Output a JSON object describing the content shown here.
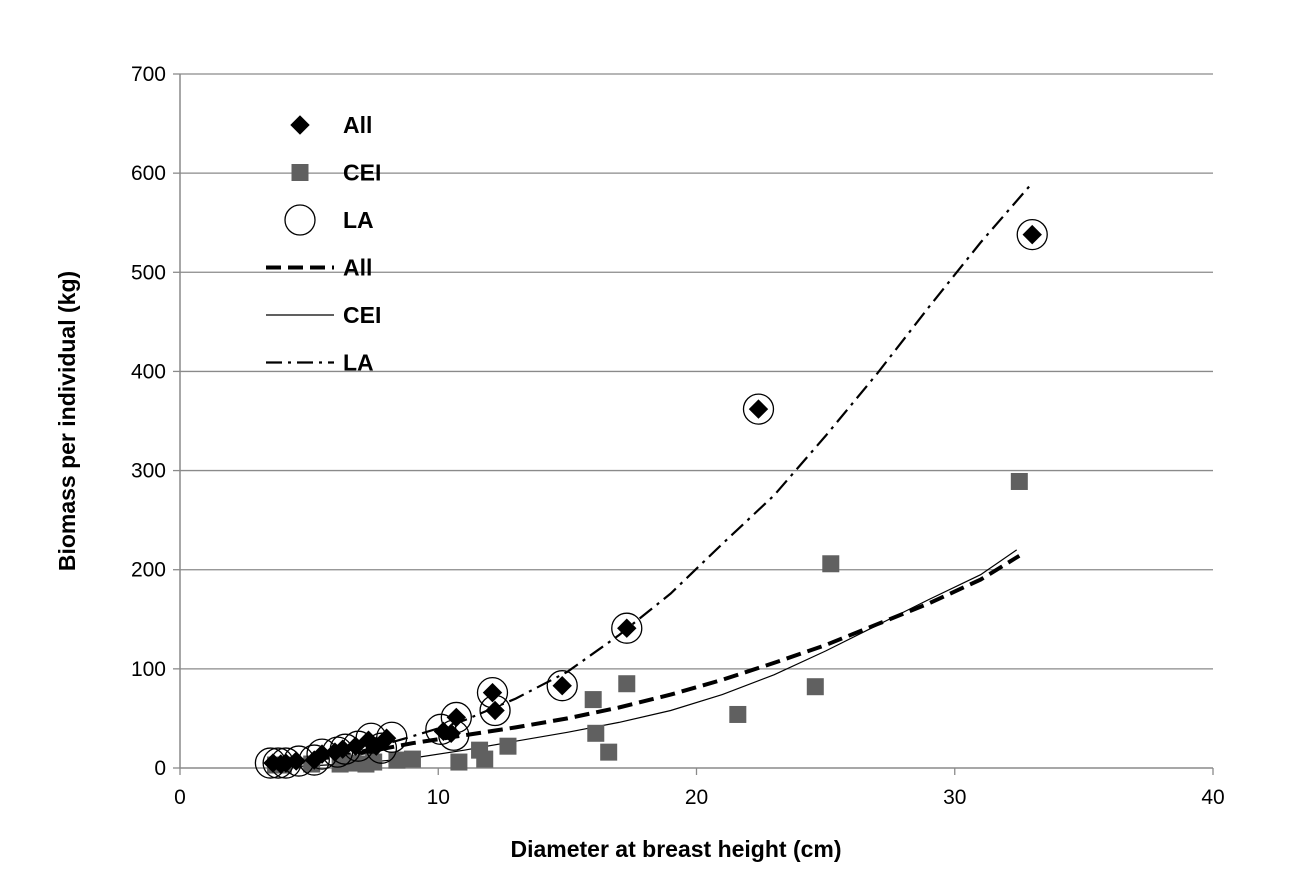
{
  "chart_data": {
    "type": "scatter",
    "title": "",
    "xlabel": "Diameter at breast height (cm)",
    "ylabel": "Biomass per individual (kg)",
    "xlim": [
      0,
      40
    ],
    "ylim": [
      0,
      700
    ],
    "xticks": [
      0,
      10,
      20,
      30,
      40
    ],
    "yticks": [
      0,
      100,
      200,
      300,
      400,
      500,
      600,
      700
    ],
    "grid": "horizontal",
    "legend_position": "top-left",
    "legend": [
      {
        "label": "All",
        "kind": "marker",
        "marker": "diamond"
      },
      {
        "label": "CEI",
        "kind": "marker",
        "marker": "square"
      },
      {
        "label": "LA",
        "kind": "marker",
        "marker": "circle"
      },
      {
        "label": "All",
        "kind": "line",
        "dash": "dashed"
      },
      {
        "label": "CEI",
        "kind": "line",
        "dash": "solid"
      },
      {
        "label": "LA",
        "kind": "line",
        "dash": "dashdot"
      }
    ],
    "series": [
      {
        "name": "All",
        "marker": "diamond",
        "color": "#000000",
        "points": [
          [
            3.6,
            5
          ],
          [
            3.9,
            4
          ],
          [
            4.1,
            5
          ],
          [
            4.5,
            7
          ],
          [
            5.2,
            8
          ],
          [
            5.5,
            14
          ],
          [
            6.0,
            16
          ],
          [
            6.3,
            19
          ],
          [
            6.8,
            22
          ],
          [
            7.3,
            28
          ],
          [
            7.6,
            22
          ],
          [
            8.0,
            30
          ],
          [
            10.2,
            37
          ],
          [
            10.5,
            35
          ],
          [
            10.7,
            51
          ],
          [
            12.1,
            76
          ],
          [
            12.2,
            58
          ],
          [
            14.8,
            83
          ],
          [
            17.3,
            141
          ],
          [
            22.4,
            362
          ],
          [
            33.0,
            538
          ]
        ]
      },
      {
        "name": "CEI",
        "marker": "square",
        "color": "#606060",
        "points": [
          [
            3.7,
            3
          ],
          [
            4.0,
            3
          ],
          [
            5.1,
            4
          ],
          [
            6.2,
            4
          ],
          [
            6.7,
            5
          ],
          [
            7.2,
            4
          ],
          [
            7.5,
            6
          ],
          [
            8.4,
            8
          ],
          [
            9.0,
            9
          ],
          [
            10.8,
            6
          ],
          [
            11.6,
            18
          ],
          [
            11.8,
            9
          ],
          [
            12.7,
            22
          ],
          [
            16.0,
            69
          ],
          [
            16.1,
            35
          ],
          [
            16.6,
            16
          ],
          [
            17.3,
            85
          ],
          [
            21.6,
            54
          ],
          [
            24.6,
            82
          ],
          [
            25.2,
            206
          ],
          [
            32.5,
            289
          ]
        ]
      },
      {
        "name": "LA",
        "marker": "circle",
        "color": "#000000",
        "points": [
          [
            3.5,
            5
          ],
          [
            3.8,
            5
          ],
          [
            4.1,
            5
          ],
          [
            4.6,
            7
          ],
          [
            5.2,
            8
          ],
          [
            5.5,
            14
          ],
          [
            6.1,
            16
          ],
          [
            6.4,
            19
          ],
          [
            6.9,
            22
          ],
          [
            7.4,
            30
          ],
          [
            7.8,
            20
          ],
          [
            8.2,
            31
          ],
          [
            10.1,
            39
          ],
          [
            10.6,
            33
          ],
          [
            10.7,
            51
          ],
          [
            12.1,
            76
          ],
          [
            12.2,
            58
          ],
          [
            14.8,
            83
          ],
          [
            17.3,
            141
          ],
          [
            22.4,
            362
          ],
          [
            33.0,
            538
          ]
        ]
      }
    ],
    "fit_lines": [
      {
        "name": "All",
        "dash": "dashed",
        "points": [
          [
            3.5,
            4
          ],
          [
            5,
            8
          ],
          [
            7,
            15
          ],
          [
            9,
            25
          ],
          [
            11,
            33
          ],
          [
            13,
            41
          ],
          [
            15,
            50
          ],
          [
            17,
            61
          ],
          [
            19,
            74
          ],
          [
            21,
            89
          ],
          [
            23,
            106
          ],
          [
            25,
            124
          ],
          [
            27,
            145
          ],
          [
            29,
            166
          ],
          [
            31,
            190
          ],
          [
            32.5,
            214
          ]
        ]
      },
      {
        "name": "CEI",
        "dash": "solid",
        "points": [
          [
            3.5,
            1
          ],
          [
            5,
            2
          ],
          [
            7,
            5
          ],
          [
            9,
            10
          ],
          [
            11,
            18
          ],
          [
            13,
            27
          ],
          [
            15,
            36
          ],
          [
            17,
            46
          ],
          [
            19,
            58
          ],
          [
            21,
            74
          ],
          [
            23,
            94
          ],
          [
            25,
            118
          ],
          [
            27,
            144
          ],
          [
            29,
            170
          ],
          [
            31,
            195
          ],
          [
            32.4,
            220
          ]
        ]
      },
      {
        "name": "LA",
        "dash": "dashdot",
        "points": [
          [
            3.5,
            5
          ],
          [
            5,
            9
          ],
          [
            7,
            17
          ],
          [
            9,
            32
          ],
          [
            11,
            48
          ],
          [
            13,
            70
          ],
          [
            15,
            97
          ],
          [
            17,
            134
          ],
          [
            19,
            176
          ],
          [
            21,
            226
          ],
          [
            23,
            275
          ],
          [
            25,
            335
          ],
          [
            27,
            398
          ],
          [
            29,
            465
          ],
          [
            31,
            530
          ],
          [
            32.9,
            587
          ]
        ]
      }
    ]
  }
}
